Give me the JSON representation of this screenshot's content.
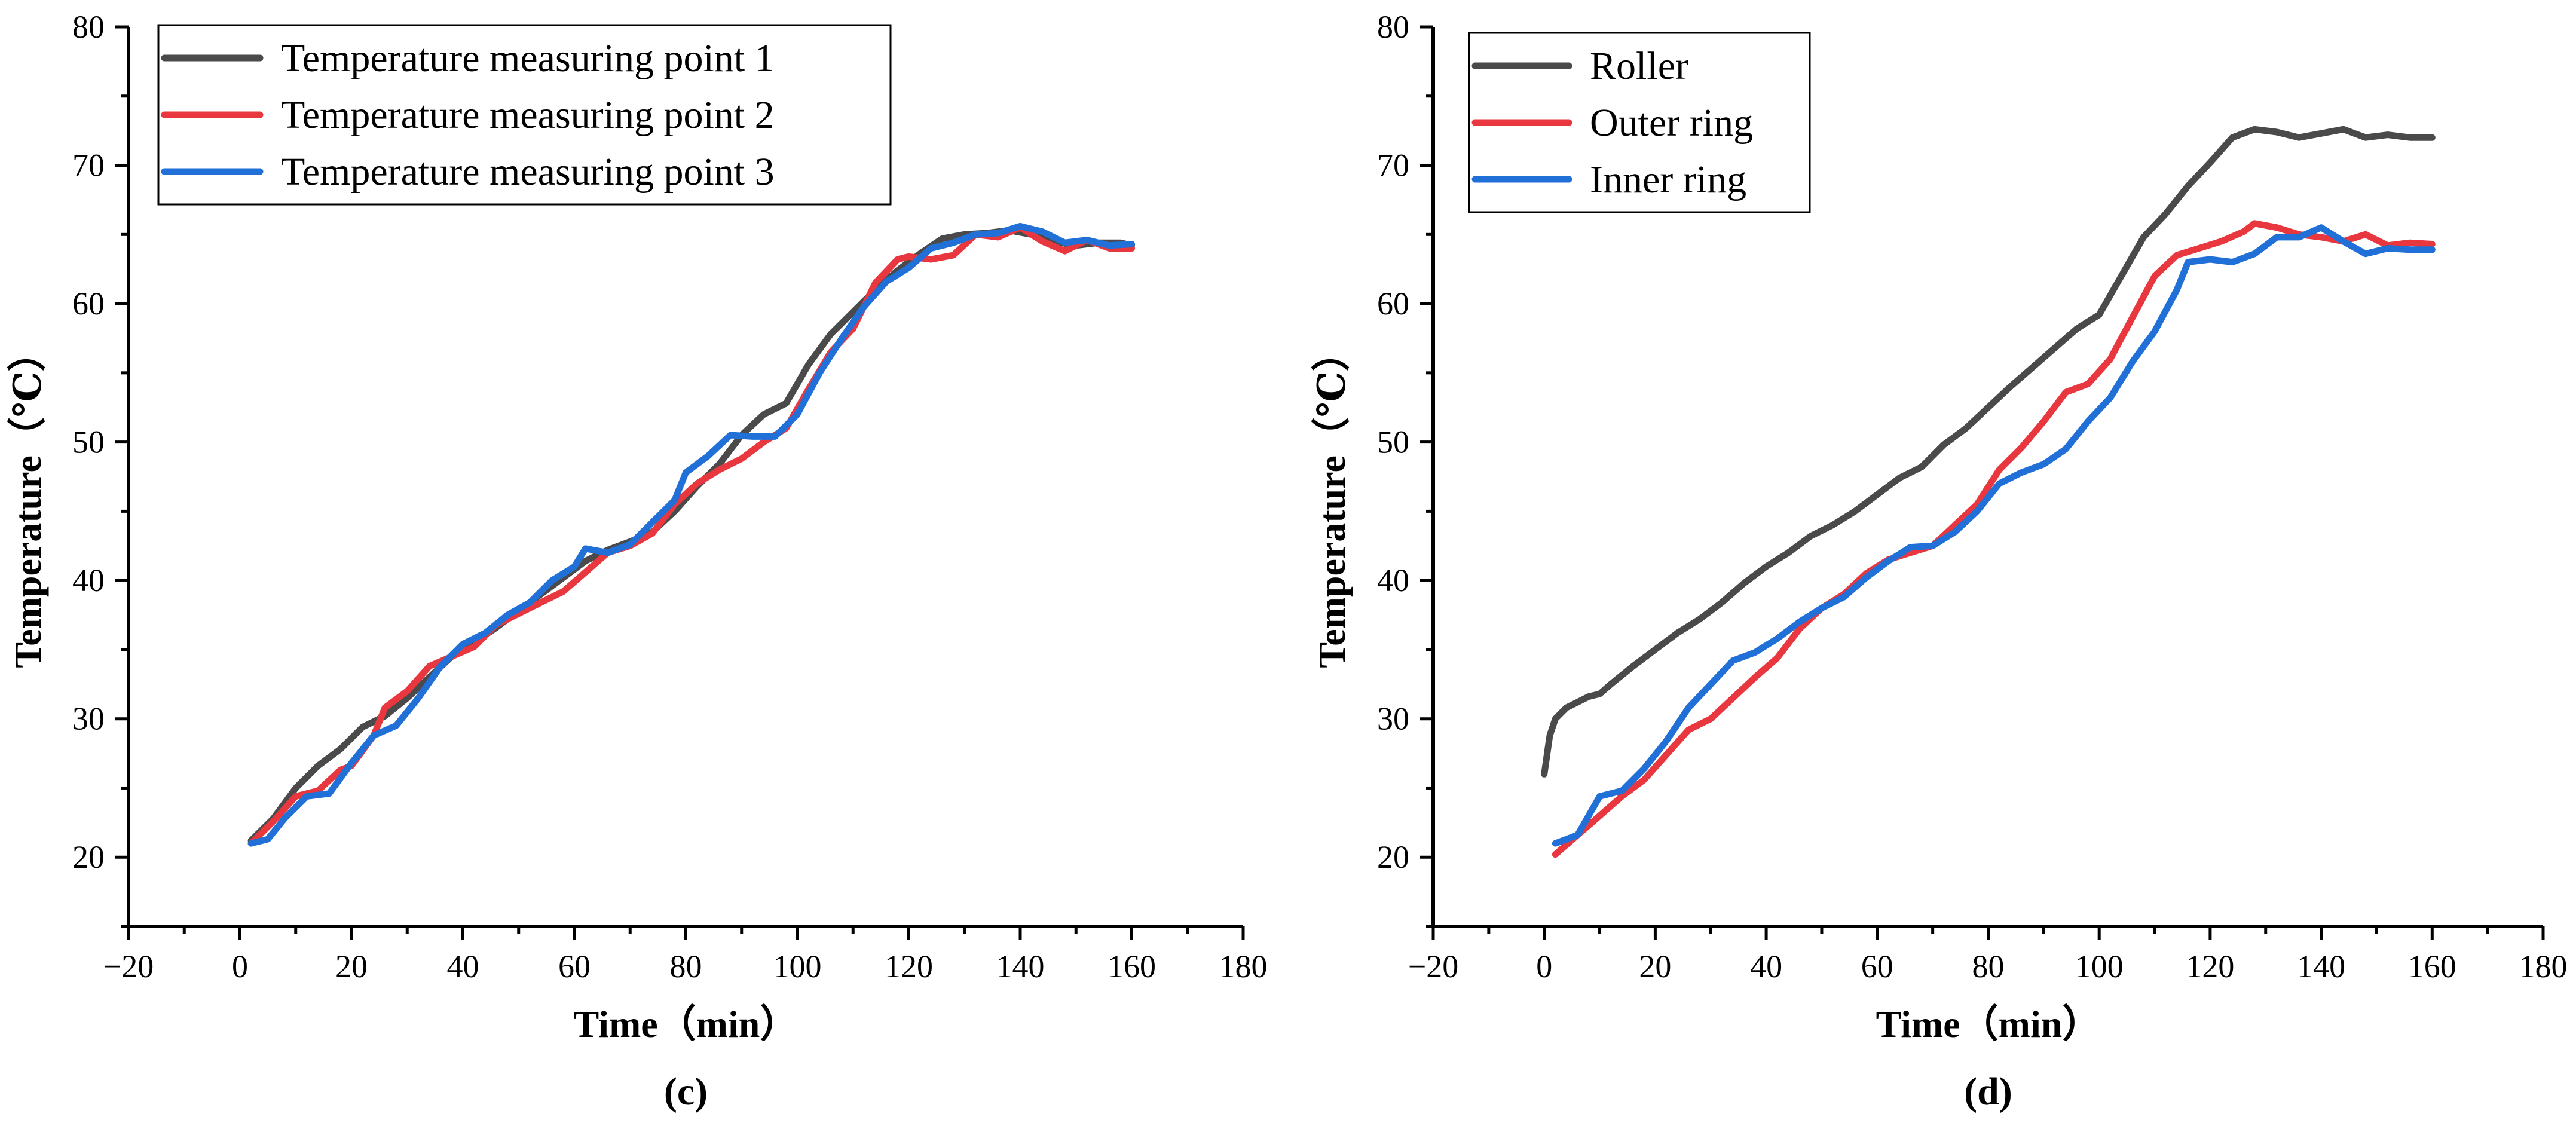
{
  "chart_data": [
    {
      "type": "line",
      "panel_label": "(c)",
      "xlabel": "Time（min）",
      "ylabel": "Temperature（℃）",
      "xlim": [
        -20,
        180
      ],
      "ylim": [
        15,
        80
      ],
      "x_ticks": [
        -20,
        0,
        20,
        40,
        60,
        80,
        100,
        120,
        140,
        160,
        180
      ],
      "y_ticks": [
        20,
        30,
        40,
        50,
        60,
        70,
        80
      ],
      "legend_position": "top-left",
      "grid": false,
      "series": [
        {
          "name": "Temperature measuring point 1",
          "color": "#4a4a4a",
          "points": [
            [
              2,
              21.2
            ],
            [
              6,
              22.8
            ],
            [
              10,
              25.0
            ],
            [
              14,
              26.6
            ],
            [
              18,
              27.8
            ],
            [
              22,
              29.4
            ],
            [
              26,
              30.2
            ],
            [
              30,
              31.5
            ],
            [
              34,
              33.0
            ],
            [
              38,
              34.5
            ],
            [
              42,
              35.5
            ],
            [
              46,
              36.6
            ],
            [
              50,
              37.8
            ],
            [
              54,
              39.0
            ],
            [
              58,
              40.2
            ],
            [
              62,
              41.4
            ],
            [
              66,
              42.2
            ],
            [
              70,
              42.8
            ],
            [
              74,
              43.5
            ],
            [
              78,
              45.0
            ],
            [
              82,
              46.8
            ],
            [
              86,
              48.4
            ],
            [
              90,
              50.5
            ],
            [
              94,
              52.0
            ],
            [
              98,
              52.8
            ],
            [
              102,
              55.6
            ],
            [
              106,
              57.8
            ],
            [
              110,
              59.4
            ],
            [
              114,
              61.0
            ],
            [
              118,
              62.4
            ],
            [
              122,
              63.6
            ],
            [
              126,
              64.7
            ],
            [
              130,
              65.0
            ],
            [
              134,
              65.1
            ],
            [
              138,
              65.3
            ],
            [
              142,
              65.0
            ],
            [
              146,
              64.5
            ],
            [
              150,
              64.2
            ],
            [
              154,
              64.4
            ],
            [
              158,
              64.4
            ],
            [
              160,
              64.2
            ]
          ]
        },
        {
          "name": "Temperature measuring point 2",
          "color": "#e8373e",
          "points": [
            [
              2,
              21.0
            ],
            [
              6,
              22.6
            ],
            [
              10,
              24.4
            ],
            [
              14,
              24.8
            ],
            [
              18,
              26.3
            ],
            [
              20,
              26.6
            ],
            [
              24,
              28.8
            ],
            [
              26,
              30.8
            ],
            [
              30,
              32.0
            ],
            [
              34,
              33.8
            ],
            [
              38,
              34.5
            ],
            [
              42,
              35.2
            ],
            [
              46,
              36.8
            ],
            [
              50,
              37.6
            ],
            [
              54,
              38.4
            ],
            [
              58,
              39.2
            ],
            [
              62,
              40.6
            ],
            [
              66,
              42.0
            ],
            [
              70,
              42.5
            ],
            [
              74,
              43.4
            ],
            [
              78,
              45.5
            ],
            [
              82,
              47.0
            ],
            [
              86,
              48.0
            ],
            [
              90,
              48.8
            ],
            [
              94,
              50.0
            ],
            [
              98,
              51.0
            ],
            [
              102,
              53.8
            ],
            [
              106,
              56.5
            ],
            [
              110,
              58.2
            ],
            [
              114,
              61.5
            ],
            [
              118,
              63.2
            ],
            [
              120,
              63.4
            ],
            [
              124,
              63.2
            ],
            [
              128,
              63.5
            ],
            [
              132,
              65.0
            ],
            [
              136,
              64.8
            ],
            [
              140,
              65.5
            ],
            [
              144,
              64.5
            ],
            [
              148,
              63.8
            ],
            [
              152,
              64.6
            ],
            [
              156,
              64.0
            ],
            [
              160,
              64.0
            ]
          ]
        },
        {
          "name": "Temperature measuring point 3",
          "color": "#2170d8",
          "points": [
            [
              2,
              21.0
            ],
            [
              5,
              21.3
            ],
            [
              8,
              22.8
            ],
            [
              12,
              24.4
            ],
            [
              16,
              24.6
            ],
            [
              20,
              26.8
            ],
            [
              24,
              28.8
            ],
            [
              28,
              29.5
            ],
            [
              32,
              31.5
            ],
            [
              36,
              33.8
            ],
            [
              40,
              35.4
            ],
            [
              44,
              36.2
            ],
            [
              48,
              37.5
            ],
            [
              52,
              38.4
            ],
            [
              56,
              40.0
            ],
            [
              60,
              41.0
            ],
            [
              62,
              42.3
            ],
            [
              66,
              42.0
            ],
            [
              70,
              42.6
            ],
            [
              74,
              44.2
            ],
            [
              78,
              45.8
            ],
            [
              80,
              47.8
            ],
            [
              84,
              49.0
            ],
            [
              88,
              50.5
            ],
            [
              92,
              50.4
            ],
            [
              96,
              50.4
            ],
            [
              100,
              52.0
            ],
            [
              104,
              55.0
            ],
            [
              108,
              57.5
            ],
            [
              112,
              59.8
            ],
            [
              116,
              61.6
            ],
            [
              120,
              62.6
            ],
            [
              124,
              64.0
            ],
            [
              128,
              64.4
            ],
            [
              132,
              65.0
            ],
            [
              136,
              65.1
            ],
            [
              140,
              65.6
            ],
            [
              144,
              65.2
            ],
            [
              148,
              64.4
            ],
            [
              152,
              64.6
            ],
            [
              156,
              64.2
            ],
            [
              160,
              64.3
            ]
          ]
        }
      ]
    },
    {
      "type": "line",
      "panel_label": "(d)",
      "xlabel": "Time（min）",
      "ylabel": "Temperature（℃）",
      "xlim": [
        -20,
        180
      ],
      "ylim": [
        15,
        80
      ],
      "x_ticks": [
        -20,
        0,
        20,
        40,
        60,
        80,
        100,
        120,
        140,
        160,
        180
      ],
      "y_ticks": [
        20,
        30,
        40,
        50,
        60,
        70,
        80
      ],
      "legend_position": "top-left",
      "grid": false,
      "series": [
        {
          "name": "Roller",
          "color": "#4a4a4a",
          "points": [
            [
              0,
              26.0
            ],
            [
              1,
              28.8
            ],
            [
              2,
              30.0
            ],
            [
              4,
              30.8
            ],
            [
              6,
              31.2
            ],
            [
              8,
              31.6
            ],
            [
              10,
              31.8
            ],
            [
              12,
              32.5
            ],
            [
              16,
              33.8
            ],
            [
              20,
              35.0
            ],
            [
              24,
              36.2
            ],
            [
              28,
              37.2
            ],
            [
              32,
              38.4
            ],
            [
              36,
              39.8
            ],
            [
              40,
              41.0
            ],
            [
              44,
              42.0
            ],
            [
              48,
              43.2
            ],
            [
              52,
              44.0
            ],
            [
              56,
              45.0
            ],
            [
              60,
              46.2
            ],
            [
              64,
              47.4
            ],
            [
              68,
              48.2
            ],
            [
              72,
              49.8
            ],
            [
              76,
              51.0
            ],
            [
              80,
              52.5
            ],
            [
              84,
              54.0
            ],
            [
              88,
              55.4
            ],
            [
              92,
              56.8
            ],
            [
              96,
              58.2
            ],
            [
              100,
              59.2
            ],
            [
              104,
              62.0
            ],
            [
              108,
              64.8
            ],
            [
              112,
              66.5
            ],
            [
              116,
              68.5
            ],
            [
              120,
              70.2
            ],
            [
              124,
              72.0
            ],
            [
              128,
              72.6
            ],
            [
              132,
              72.4
            ],
            [
              136,
              72.0
            ],
            [
              140,
              72.3
            ],
            [
              144,
              72.6
            ],
            [
              148,
              72.0
            ],
            [
              152,
              72.2
            ],
            [
              156,
              72.0
            ],
            [
              160,
              72.0
            ]
          ]
        },
        {
          "name": "Outer ring",
          "color": "#e8373e",
          "points": [
            [
              2,
              20.2
            ],
            [
              6,
              21.6
            ],
            [
              10,
              23.0
            ],
            [
              14,
              24.4
            ],
            [
              18,
              25.6
            ],
            [
              22,
              27.4
            ],
            [
              26,
              29.2
            ],
            [
              30,
              30.0
            ],
            [
              34,
              31.5
            ],
            [
              38,
              33.0
            ],
            [
              42,
              34.4
            ],
            [
              46,
              36.5
            ],
            [
              50,
              38.0
            ],
            [
              54,
              39.0
            ],
            [
              58,
              40.5
            ],
            [
              62,
              41.5
            ],
            [
              66,
              42.0
            ],
            [
              70,
              42.5
            ],
            [
              74,
              44.0
            ],
            [
              78,
              45.5
            ],
            [
              82,
              48.0
            ],
            [
              86,
              49.6
            ],
            [
              90,
              51.5
            ],
            [
              94,
              53.6
            ],
            [
              98,
              54.2
            ],
            [
              102,
              56.0
            ],
            [
              106,
              59.0
            ],
            [
              110,
              62.0
            ],
            [
              114,
              63.5
            ],
            [
              118,
              64.0
            ],
            [
              122,
              64.5
            ],
            [
              126,
              65.2
            ],
            [
              128,
              65.8
            ],
            [
              132,
              65.5
            ],
            [
              136,
              65.0
            ],
            [
              140,
              64.8
            ],
            [
              144,
              64.5
            ],
            [
              148,
              65.0
            ],
            [
              152,
              64.2
            ],
            [
              156,
              64.4
            ],
            [
              160,
              64.3
            ]
          ]
        },
        {
          "name": "Inner ring",
          "color": "#2170d8",
          "points": [
            [
              2,
              21.0
            ],
            [
              6,
              21.6
            ],
            [
              10,
              24.4
            ],
            [
              14,
              24.8
            ],
            [
              18,
              26.4
            ],
            [
              22,
              28.4
            ],
            [
              26,
              30.8
            ],
            [
              30,
              32.5
            ],
            [
              34,
              34.2
            ],
            [
              38,
              34.8
            ],
            [
              42,
              35.8
            ],
            [
              46,
              37.0
            ],
            [
              50,
              38.0
            ],
            [
              54,
              38.8
            ],
            [
              58,
              40.2
            ],
            [
              62,
              41.4
            ],
            [
              66,
              42.4
            ],
            [
              70,
              42.5
            ],
            [
              74,
              43.5
            ],
            [
              78,
              45.0
            ],
            [
              82,
              47.0
            ],
            [
              86,
              47.8
            ],
            [
              90,
              48.4
            ],
            [
              94,
              49.5
            ],
            [
              98,
              51.5
            ],
            [
              102,
              53.2
            ],
            [
              106,
              55.8
            ],
            [
              110,
              58.0
            ],
            [
              114,
              61.0
            ],
            [
              116,
              63.0
            ],
            [
              120,
              63.2
            ],
            [
              124,
              63.0
            ],
            [
              128,
              63.6
            ],
            [
              132,
              64.8
            ],
            [
              136,
              64.8
            ],
            [
              140,
              65.5
            ],
            [
              144,
              64.5
            ],
            [
              148,
              63.6
            ],
            [
              152,
              64.0
            ],
            [
              156,
              63.9
            ],
            [
              160,
              63.9
            ]
          ]
        }
      ]
    }
  ]
}
